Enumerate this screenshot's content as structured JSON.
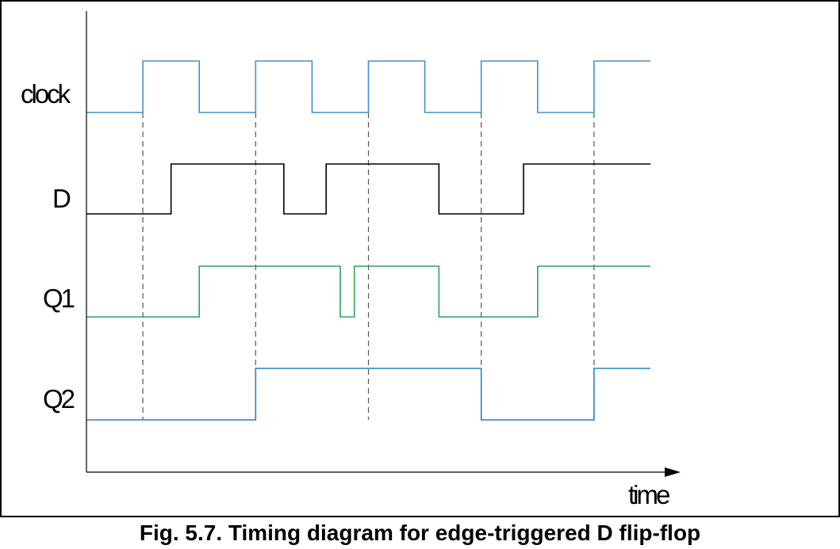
{
  "caption": "Fig. 5.7. Timing diagram for edge-triggered D flip-flop",
  "axis": {
    "x_label": "time"
  },
  "colors": {
    "clock": "#4a8ec2",
    "clock_low": "#2fa35a",
    "d": "#000000",
    "q1": "#2fa35a",
    "q2": "#2f7fc0",
    "guide": "#555555",
    "frame": "#000000"
  },
  "signals": [
    {
      "id": "clock",
      "label": "clock",
      "transitions": [
        0,
        1,
        2,
        3,
        4,
        5,
        6,
        7,
        8,
        9
      ],
      "initial": 0,
      "end": 10
    },
    {
      "id": "d",
      "label": "D",
      "transitions": [
        1.5,
        3.5,
        4.25,
        6.25,
        7.75
      ],
      "initial": 0,
      "end": 10
    },
    {
      "id": "q1",
      "label": "Q1",
      "transitions": [
        2,
        4.5,
        4.75,
        6.25,
        8
      ],
      "initial": 0,
      "end": 10
    },
    {
      "id": "q2",
      "label": "Q2",
      "transitions": [
        3,
        7,
        9
      ],
      "initial": 0,
      "end": 10
    }
  ],
  "clock_edges": [
    0.5,
    2.5,
    4.5,
    6.5,
    8.5
  ]
}
